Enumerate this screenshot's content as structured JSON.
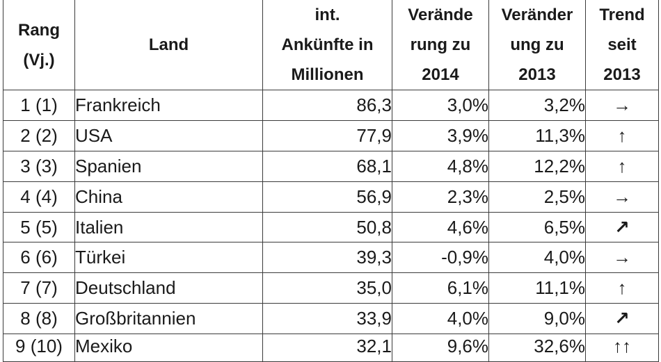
{
  "table": {
    "headers": {
      "rank": "Rang\n(Vj.)",
      "country": "Land",
      "arrivals": "int.\nAnkünfte in\nMillionen",
      "change_2014": "Verände\nrung zu\n2014",
      "change_2013": "Veränder\nung zu\n2013",
      "trend": "Trend\nseit\n2013"
    },
    "rows": [
      {
        "rank": "1 (1)",
        "country": "Frankreich",
        "arrivals": "86,3",
        "change_2014": "3,0%",
        "change_2013": "3,2%",
        "trend": "→",
        "trend_icon": "arrow-right-icon"
      },
      {
        "rank": "2 (2)",
        "country": "USA",
        "arrivals": "77,9",
        "change_2014": "3,9%",
        "change_2013": "11,3%",
        "trend": "↑",
        "trend_icon": "arrow-up-icon"
      },
      {
        "rank": "3 (3)",
        "country": "Spanien",
        "arrivals": "68,1",
        "change_2014": "4,8%",
        "change_2013": "12,2%",
        "trend": "↑",
        "trend_icon": "arrow-up-icon"
      },
      {
        "rank": "4 (4)",
        "country": "China",
        "arrivals": "56,9",
        "change_2014": "2,3%",
        "change_2013": "2,5%",
        "trend": "→",
        "trend_icon": "arrow-right-icon"
      },
      {
        "rank": "5 (5)",
        "country": "Italien",
        "arrivals": "50,8",
        "change_2014": "4,6%",
        "change_2013": "6,5%",
        "trend": "↗",
        "trend_icon": "arrow-up-right-icon"
      },
      {
        "rank": "6 (6)",
        "country": "Türkei",
        "arrivals": "39,3",
        "change_2014": "-0,9%",
        "change_2013": "4,0%",
        "trend": "→",
        "trend_icon": "arrow-right-icon"
      },
      {
        "rank": "7 (7)",
        "country": "Deutschland",
        "arrivals": "35,0",
        "change_2014": "6,1%",
        "change_2013": "11,1%",
        "trend": "↑",
        "trend_icon": "arrow-up-icon"
      },
      {
        "rank": "8 (8)",
        "country": "Großbritannien",
        "arrivals": "33,9",
        "change_2014": "4,0%",
        "change_2013": "9,0%",
        "trend": "↗",
        "trend_icon": "arrow-up-right-icon"
      },
      {
        "rank": "9 (10)",
        "country": "Mexiko",
        "arrivals": "32,1",
        "change_2014": "9,6%",
        "change_2013": "32,6%",
        "trend": "↑↑",
        "trend_icon": "double-arrow-up-icon"
      }
    ]
  }
}
